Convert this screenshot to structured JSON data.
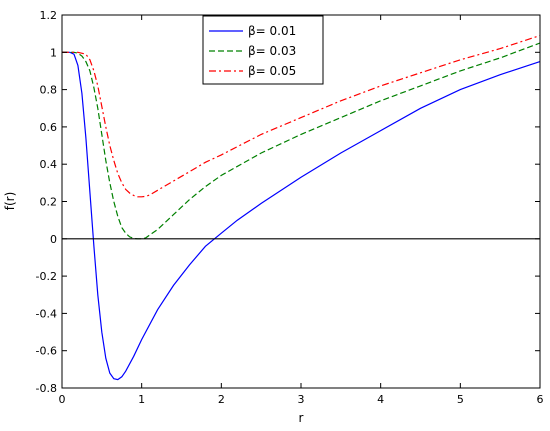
{
  "chart_data": {
    "type": "line",
    "title": "",
    "xlabel": "r",
    "ylabel": "f(r)",
    "xlim": [
      0,
      6
    ],
    "ylim": [
      -0.8,
      1.2
    ],
    "xticks": [
      0,
      1,
      2,
      3,
      4,
      5,
      6
    ],
    "yticks": [
      -0.8,
      -0.6,
      -0.4,
      -0.2,
      0,
      0.2,
      0.4,
      0.6,
      0.8,
      1,
      1.2
    ],
    "xtick_labels": [
      "0",
      "1",
      "2",
      "3",
      "4",
      "5",
      "6"
    ],
    "ytick_labels": [
      "-0.8",
      "-0.6",
      "-0.4",
      "-0.2",
      "0",
      "0.2",
      "0.4",
      "0.6",
      "0.8",
      "1",
      "1.2"
    ],
    "grid": false,
    "legend_position": "top-center",
    "reference_line": {
      "y": 0,
      "color": "#000000"
    },
    "series": [
      {
        "name": "β= 0.01",
        "color": "#0000ff",
        "style": "solid",
        "x": [
          0,
          0.1,
          0.15,
          0.2,
          0.25,
          0.3,
          0.35,
          0.4,
          0.45,
          0.5,
          0.55,
          0.6,
          0.65,
          0.7,
          0.75,
          0.8,
          0.9,
          1.0,
          1.2,
          1.4,
          1.6,
          1.8,
          2.0,
          2.2,
          2.5,
          3.0,
          3.5,
          4.0,
          4.5,
          5.0,
          5.5,
          6.0
        ],
        "y": [
          1,
          1,
          0.99,
          0.93,
          0.78,
          0.54,
          0.25,
          -0.04,
          -0.3,
          -0.5,
          -0.64,
          -0.72,
          -0.75,
          -0.755,
          -0.74,
          -0.71,
          -0.63,
          -0.54,
          -0.38,
          -0.25,
          -0.14,
          -0.04,
          0.03,
          0.1,
          0.19,
          0.33,
          0.46,
          0.58,
          0.7,
          0.8,
          0.88,
          0.95
        ]
      },
      {
        "name": "β= 0.03",
        "color": "#008000",
        "style": "dashed",
        "x": [
          0,
          0.15,
          0.2,
          0.25,
          0.3,
          0.35,
          0.4,
          0.45,
          0.5,
          0.55,
          0.6,
          0.65,
          0.7,
          0.75,
          0.8,
          0.85,
          0.9,
          0.95,
          1.0,
          1.05,
          1.1,
          1.2,
          1.4,
          1.6,
          1.8,
          2.0,
          2.5,
          3.0,
          3.5,
          4.0,
          4.5,
          5.0,
          5.5,
          6.0
        ],
        "y": [
          1,
          1,
          0.995,
          0.98,
          0.95,
          0.9,
          0.81,
          0.7,
          0.56,
          0.42,
          0.3,
          0.2,
          0.12,
          0.06,
          0.03,
          0.01,
          0.002,
          0,
          0,
          0.005,
          0.02,
          0.05,
          0.13,
          0.21,
          0.28,
          0.34,
          0.46,
          0.56,
          0.65,
          0.74,
          0.82,
          0.9,
          0.97,
          1.05
        ]
      },
      {
        "name": "β= 0.05",
        "color": "#ff0000",
        "style": "dashdot",
        "x": [
          0,
          0.2,
          0.3,
          0.35,
          0.4,
          0.45,
          0.5,
          0.55,
          0.6,
          0.65,
          0.7,
          0.75,
          0.8,
          0.85,
          0.9,
          0.95,
          1.0,
          1.05,
          1.1,
          1.2,
          1.4,
          1.6,
          1.8,
          2.0,
          2.5,
          3.0,
          3.5,
          4.0,
          4.5,
          5.0,
          5.5,
          6.0
        ],
        "y": [
          1,
          1,
          0.99,
          0.96,
          0.9,
          0.82,
          0.71,
          0.6,
          0.5,
          0.42,
          0.35,
          0.3,
          0.265,
          0.245,
          0.232,
          0.225,
          0.225,
          0.228,
          0.235,
          0.26,
          0.31,
          0.36,
          0.41,
          0.45,
          0.56,
          0.65,
          0.74,
          0.82,
          0.89,
          0.96,
          1.02,
          1.09
        ]
      }
    ]
  }
}
